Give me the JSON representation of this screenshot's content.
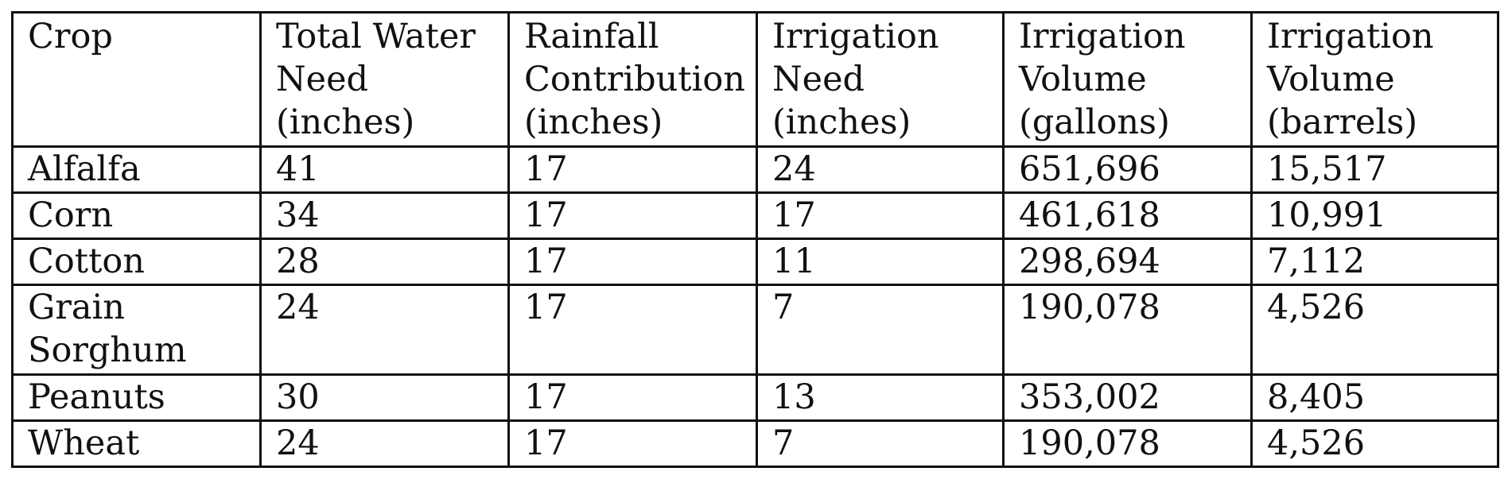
{
  "table": {
    "headers": [
      "Crop",
      "Total Water\nNeed\n(inches)",
      "Rainfall\nContribution\n(inches)",
      "Irrigation\nNeed\n(inches)",
      "Irrigation\nVolume\n(gallons)",
      "Irrigation\nVolume\n(barrels)"
    ],
    "rows": [
      [
        "Alfalfa",
        "41",
        "17",
        "24",
        "651,696",
        "15,517"
      ],
      [
        "Corn",
        "34",
        "17",
        "17",
        "461,618",
        "10,991"
      ],
      [
        "Cotton",
        "28",
        "17",
        "11",
        "298,694",
        "7,112"
      ],
      [
        "Grain\nSorghum",
        "24",
        "17",
        "7",
        "190,078",
        "4,526"
      ],
      [
        "Peanuts",
        "30",
        "17",
        "13",
        "353,002",
        "8,405"
      ],
      [
        "Wheat",
        "24",
        "17",
        "7",
        "190,078",
        "4,526"
      ]
    ]
  }
}
